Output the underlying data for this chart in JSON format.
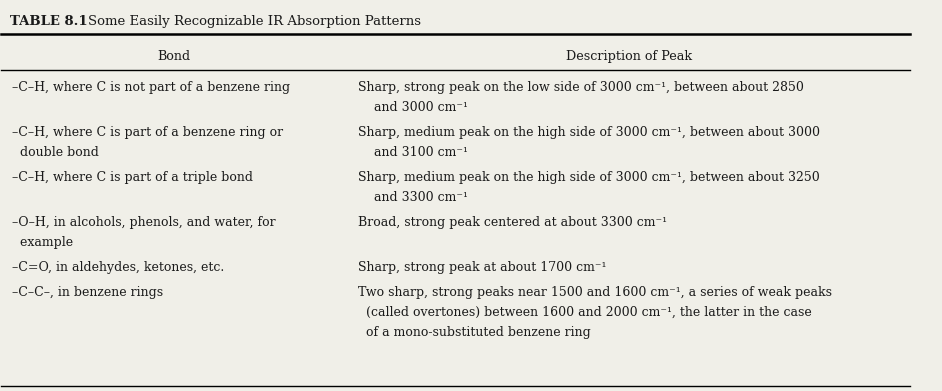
{
  "title": "TABLE 8.1",
  "subtitle": "Some Easily Recognizable IR Absorption Patterns",
  "col1_header": "Bond",
  "col2_header": "Description of Peak",
  "rows": [
    {
      "bond": [
        "–C–H, where C is not part of a benzene ring"
      ],
      "desc": [
        "Sharp, strong peak on the low side of 3000 cm⁻¹, between about 2850",
        "    and 3000 cm⁻¹"
      ]
    },
    {
      "bond": [
        "–C–H, where C is part of a benzene ring or",
        "  double bond"
      ],
      "desc": [
        "Sharp, medium peak on the high side of 3000 cm⁻¹, between about 3000",
        "    and 3100 cm⁻¹"
      ]
    },
    {
      "bond": [
        "–C–H, where C is part of a triple bond"
      ],
      "desc": [
        "Sharp, medium peak on the high side of 3000 cm⁻¹, between about 3250",
        "    and 3300 cm⁻¹"
      ]
    },
    {
      "bond": [
        "–O–H, in alcohols, phenols, and water, for",
        "  example"
      ],
      "desc": [
        "Broad, strong peak centered at about 3300 cm⁻¹"
      ]
    },
    {
      "bond": [
        "–C=O, in aldehydes, ketones, etc."
      ],
      "desc": [
        "Sharp, strong peak at about 1700 cm⁻¹"
      ]
    },
    {
      "bond": [
        "–C–C–, in benzene rings"
      ],
      "desc": [
        "Two sharp, strong peaks near 1500 and 1600 cm⁻¹, a series of weak peaks",
        "  (called overtones) between 1600 and 2000 cm⁻¹, the latter in the case",
        "  of a mono-substituted benzene ring"
      ]
    }
  ],
  "bg_color": "#f0efe8",
  "text_color": "#1a1a1a",
  "font_size": 9.0,
  "header_font_size": 9.2,
  "title_font_size": 9.5,
  "col_split": 0.38
}
